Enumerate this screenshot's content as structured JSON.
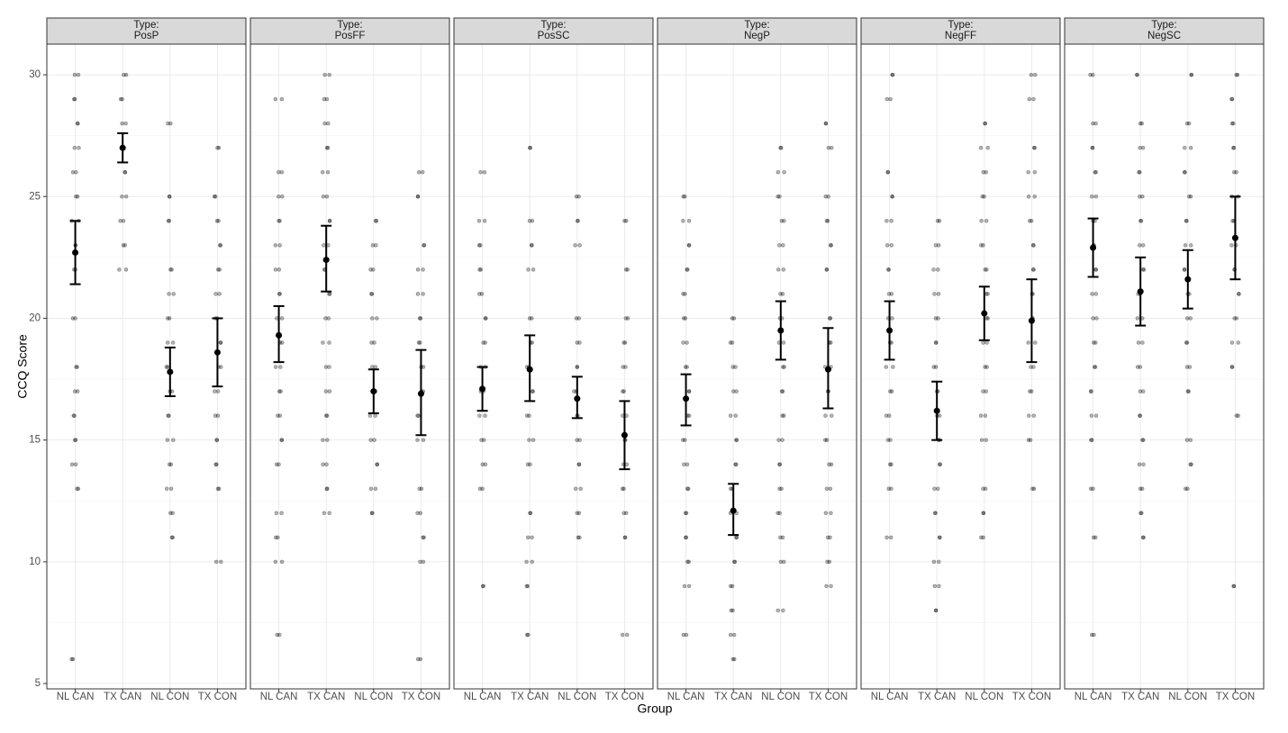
{
  "chart_data": {
    "type": "scatter",
    "y_label": "CCQ Score",
    "x_label": "Group",
    "categories": [
      "NL CAN",
      "TX CAN",
      "NL CON",
      "TX CON"
    ],
    "ylim": [
      4.78,
      31.26
    ],
    "yticks": [
      5,
      10,
      15,
      20,
      25,
      30
    ],
    "minor_yticks": [
      7.5,
      12.5,
      17.5,
      22.5,
      27.5
    ],
    "grid": true,
    "point_color": "#000000",
    "facets": [
      {
        "strip": [
          "Type:",
          "PosP"
        ],
        "groups": [
          {
            "points": [
              6,
              13,
              14,
              15,
              16,
              17,
              18,
              20,
              22,
              23,
              24,
              25,
              26,
              27,
              28,
              29,
              30
            ],
            "mean": 22.7,
            "lower": 21.4,
            "upper": 24.0
          },
          {
            "points": [
              22,
              23,
              24,
              25,
              26,
              27,
              28,
              29,
              30
            ],
            "mean": 27.0,
            "lower": 26.4,
            "upper": 27.6
          },
          {
            "points": [
              11,
              12,
              13,
              14,
              15,
              16,
              17,
              18,
              19,
              20,
              21,
              22,
              24,
              25,
              28
            ],
            "mean": 17.8,
            "lower": 16.8,
            "upper": 18.8
          },
          {
            "points": [
              10,
              13,
              14,
              15,
              16,
              17,
              18,
              19,
              20,
              21,
              22,
              23,
              24,
              25,
              27
            ],
            "mean": 18.6,
            "lower": 17.2,
            "upper": 20.0
          }
        ]
      },
      {
        "strip": [
          "Type:",
          "PosFF"
        ],
        "groups": [
          {
            "points": [
              7,
              10,
              11,
              12,
              14,
              15,
              16,
              17,
              18,
              19,
              20,
              21,
              22,
              23,
              24,
              25,
              26,
              29
            ],
            "mean": 19.3,
            "lower": 18.2,
            "upper": 20.5
          },
          {
            "points": [
              12,
              13,
              14,
              15,
              16,
              17,
              18,
              19,
              20,
              21,
              22,
              23,
              24,
              25,
              26,
              27,
              28,
              29,
              30
            ],
            "mean": 22.4,
            "lower": 21.1,
            "upper": 23.8
          },
          {
            "points": [
              12,
              13,
              14,
              15,
              16,
              17,
              18,
              19,
              20,
              21,
              22,
              23,
              24
            ],
            "mean": 17.0,
            "lower": 16.1,
            "upper": 17.9
          },
          {
            "points": [
              6,
              10,
              11,
              12,
              13,
              15,
              16,
              17,
              18,
              19,
              20,
              21,
              22,
              23,
              25,
              26
            ],
            "mean": 16.9,
            "lower": 15.2,
            "upper": 18.7
          }
        ]
      },
      {
        "strip": [
          "Type:",
          "PosSC"
        ],
        "groups": [
          {
            "points": [
              9,
              13,
              14,
              15,
              16,
              17,
              18,
              19,
              20,
              21,
              22,
              23,
              24,
              26
            ],
            "mean": 17.1,
            "lower": 16.2,
            "upper": 18.0
          },
          {
            "points": [
              7,
              9,
              10,
              11,
              12,
              14,
              15,
              16,
              17,
              18,
              19,
              20,
              22,
              23,
              24,
              27
            ],
            "mean": 17.9,
            "lower": 16.6,
            "upper": 19.3
          },
          {
            "points": [
              11,
              12,
              13,
              14,
              15,
              16,
              17,
              18,
              19,
              20,
              23,
              24,
              25
            ],
            "mean": 16.7,
            "lower": 15.9,
            "upper": 17.6
          },
          {
            "points": [
              7,
              11,
              12,
              13,
              14,
              15,
              16,
              17,
              18,
              19,
              20,
              22,
              24
            ],
            "mean": 15.2,
            "lower": 13.8,
            "upper": 16.6
          }
        ]
      },
      {
        "strip": [
          "Type:",
          "NegP"
        ],
        "groups": [
          {
            "points": [
              7,
              9,
              10,
              11,
              12,
              13,
              14,
              15,
              16,
              17,
              18,
              19,
              20,
              21,
              22,
              23,
              24,
              25
            ],
            "mean": 16.7,
            "lower": 15.6,
            "upper": 17.7
          },
          {
            "points": [
              6,
              7,
              8,
              9,
              10,
              11,
              12,
              13,
              14,
              15,
              16,
              17,
              18,
              19,
              20
            ],
            "mean": 12.1,
            "lower": 11.1,
            "upper": 13.2
          },
          {
            "points": [
              8,
              10,
              11,
              12,
              13,
              14,
              15,
              16,
              17,
              18,
              19,
              20,
              21,
              22,
              23,
              24,
              25,
              26,
              27
            ],
            "mean": 19.5,
            "lower": 18.3,
            "upper": 20.7
          },
          {
            "points": [
              9,
              10,
              11,
              12,
              13,
              14,
              15,
              16,
              17,
              18,
              19,
              20,
              22,
              23,
              24,
              25,
              27,
              28
            ],
            "mean": 17.9,
            "lower": 16.3,
            "upper": 19.6
          }
        ]
      },
      {
        "strip": [
          "Type:",
          "NegFF"
        ],
        "groups": [
          {
            "points": [
              11,
              13,
              14,
              15,
              16,
              17,
              18,
              19,
              20,
              21,
              22,
              23,
              24,
              25,
              26,
              29,
              30
            ],
            "mean": 19.5,
            "lower": 18.3,
            "upper": 20.7
          },
          {
            "points": [
              8,
              9,
              10,
              11,
              12,
              13,
              14,
              15,
              16,
              17,
              18,
              19,
              20,
              21,
              22,
              23,
              24
            ],
            "mean": 16.2,
            "lower": 15.0,
            "upper": 17.4
          },
          {
            "points": [
              11,
              12,
              13,
              15,
              16,
              17,
              18,
              19,
              20,
              21,
              22,
              23,
              24,
              25,
              26,
              27,
              28
            ],
            "mean": 20.2,
            "lower": 19.1,
            "upper": 21.3
          },
          {
            "points": [
              13,
              15,
              16,
              17,
              18,
              19,
              20,
              21,
              22,
              23,
              24,
              25,
              26,
              27,
              29,
              30
            ],
            "mean": 19.9,
            "lower": 18.2,
            "upper": 21.6
          }
        ]
      },
      {
        "strip": [
          "Type:",
          "NegSC"
        ],
        "groups": [
          {
            "points": [
              7,
              11,
              13,
              15,
              16,
              17,
              18,
              19,
              20,
              21,
              22,
              23,
              24,
              25,
              26,
              27,
              28,
              30
            ],
            "mean": 22.9,
            "lower": 21.7,
            "upper": 24.1
          },
          {
            "points": [
              11,
              12,
              13,
              14,
              15,
              16,
              17,
              18,
              19,
              20,
              21,
              22,
              23,
              24,
              25,
              26,
              27,
              28,
              30
            ],
            "mean": 21.1,
            "lower": 19.7,
            "upper": 22.5
          },
          {
            "points": [
              13,
              14,
              15,
              17,
              18,
              19,
              20,
              21,
              22,
              23,
              24,
              25,
              26,
              27,
              28,
              30
            ],
            "mean": 21.6,
            "lower": 20.4,
            "upper": 22.8
          },
          {
            "points": [
              9,
              16,
              18,
              19,
              20,
              21,
              22,
              23,
              24,
              25,
              26,
              27,
              28,
              29,
              30
            ],
            "mean": 23.3,
            "lower": 21.6,
            "upper": 25.0
          }
        ]
      }
    ]
  }
}
